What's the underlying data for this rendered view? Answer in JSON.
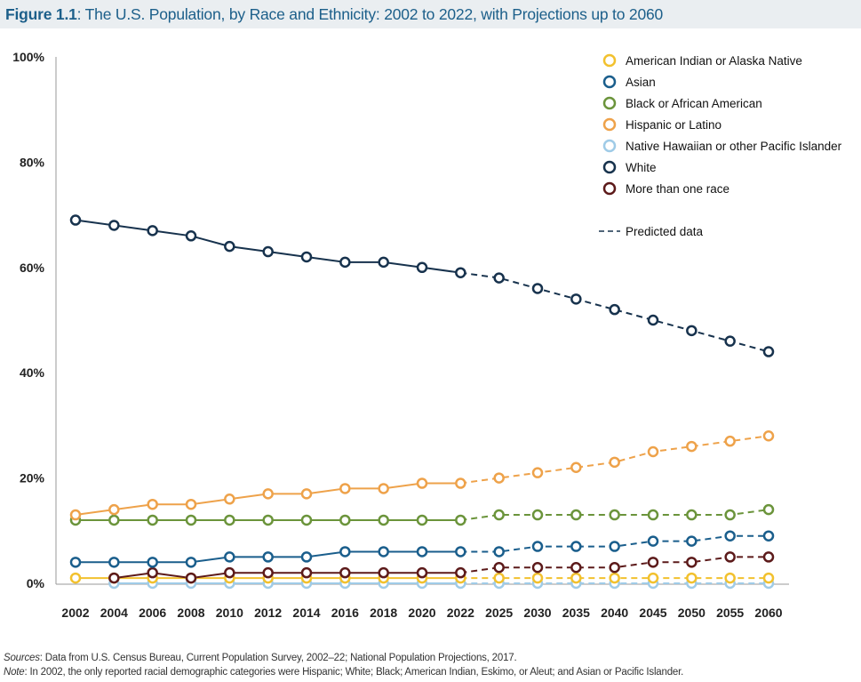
{
  "title": {
    "label": "Figure 1.1",
    "text": ": The U.S. Population, by Race and Ethnicity: 2002 to 2022, with Projections up to 2060"
  },
  "chart_data": {
    "type": "line",
    "title": "The U.S. Population, by Race and Ethnicity: 2002 to 2022, with Projections up to 2060",
    "xlabel": "",
    "ylabel": "",
    "ylim": [
      0,
      100
    ],
    "yticks": [
      "0%",
      "20%",
      "40%",
      "60%",
      "80%",
      "100%"
    ],
    "categories": [
      "2002",
      "2004",
      "2006",
      "2008",
      "2010",
      "2012",
      "2014",
      "2016",
      "2018",
      "2020",
      "2022",
      "2025",
      "2030",
      "2035",
      "2040",
      "2045",
      "2050",
      "2055",
      "2060"
    ],
    "predicted_start_index": 10,
    "legend_position": "top-right",
    "predicted_label": "Predicted data",
    "series": [
      {
        "name": "American Indian or Alaska Native",
        "color": "#f2c12e",
        "values": [
          1,
          1,
          1,
          1,
          1,
          1,
          1,
          1,
          1,
          1,
          1,
          1,
          1,
          1,
          1,
          1,
          1,
          1,
          1
        ]
      },
      {
        "name": "Asian",
        "color": "#1a5e8c",
        "values": [
          4,
          4,
          4,
          4,
          5,
          5,
          5,
          6,
          6,
          6,
          6,
          6,
          7,
          7,
          7,
          8,
          8,
          9,
          9
        ]
      },
      {
        "name": "Black or African American",
        "color": "#6b943b",
        "values": [
          12,
          12,
          12,
          12,
          12,
          12,
          12,
          12,
          12,
          12,
          12,
          13,
          13,
          13,
          13,
          13,
          13,
          13,
          14
        ]
      },
      {
        "name": "Hispanic or Latino",
        "color": "#eea24a",
        "values": [
          13,
          14,
          15,
          15,
          16,
          17,
          17,
          18,
          18,
          19,
          19,
          20,
          21,
          22,
          23,
          25,
          26,
          27,
          28
        ]
      },
      {
        "name": "Native Hawaiian or other Pacific Islander",
        "color": "#9fcbe7",
        "values": [
          null,
          0,
          0,
          0,
          0,
          0,
          0,
          0,
          0,
          0,
          0,
          0,
          0,
          0,
          0,
          0,
          0,
          0,
          0
        ]
      },
      {
        "name": "White",
        "color": "#17324d",
        "values": [
          69,
          68,
          67,
          66,
          64,
          63,
          62,
          61,
          61,
          60,
          59,
          58,
          56,
          54,
          52,
          50,
          48,
          46,
          44
        ]
      },
      {
        "name": "More than one race",
        "color": "#5c1a1a",
        "values": [
          null,
          1,
          2,
          1,
          2,
          2,
          2,
          2,
          2,
          2,
          2,
          3,
          3,
          3,
          3,
          4,
          4,
          5,
          5
        ]
      }
    ]
  },
  "footnotes": {
    "sources_label": "Sources",
    "sources_text": ": Data from U.S. Census Bureau, Current Population Survey, 2002–22; National Population Projections, 2017.",
    "note_label": "Note",
    "note_text": ": In 2002, the only reported racial demographic categories were Hispanic; White; Black; American Indian, Eskimo, or Aleut; and Asian or Pacific Islander."
  }
}
